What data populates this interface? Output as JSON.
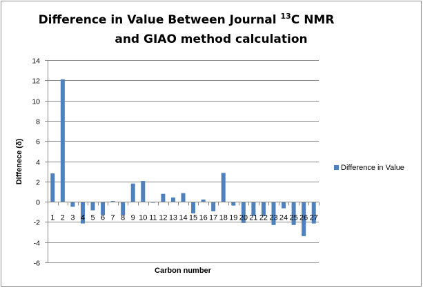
{
  "chart_data": {
    "type": "bar",
    "title_line1": "Difference in Value Between Journal ",
    "title_sup": "13",
    "title_line1_end": "C NMR",
    "title_line2": "and GIAO method calculation",
    "xlabel": "Carbon number",
    "ylabel": "Diffenece (δ)",
    "ylim": [
      -6,
      14
    ],
    "yticks": [
      -6,
      -4,
      -2,
      0,
      2,
      4,
      6,
      8,
      10,
      12,
      14
    ],
    "grid": true,
    "legend_position": "right",
    "categories": [
      "1",
      "2",
      "3",
      "4",
      "5",
      "6",
      "7",
      "8",
      "9",
      "10",
      "11",
      "12",
      "13",
      "14",
      "15",
      "16",
      "17",
      "18",
      "19",
      "20",
      "21",
      "22",
      "23",
      "24",
      "25",
      "26",
      "27"
    ],
    "series": [
      {
        "name": "Difference in Value",
        "color": "#4F81BD",
        "values": [
          2.8,
          12.1,
          -0.5,
          -2.15,
          -0.85,
          -1.3,
          0.07,
          -1.3,
          1.8,
          2.05,
          -0.1,
          0.78,
          0.42,
          0.85,
          -1.15,
          0.22,
          -0.95,
          2.85,
          -0.38,
          -2.1,
          -1.4,
          -1.4,
          -2.3,
          -0.65,
          -2.3,
          -3.4,
          -2.15
        ]
      }
    ]
  }
}
